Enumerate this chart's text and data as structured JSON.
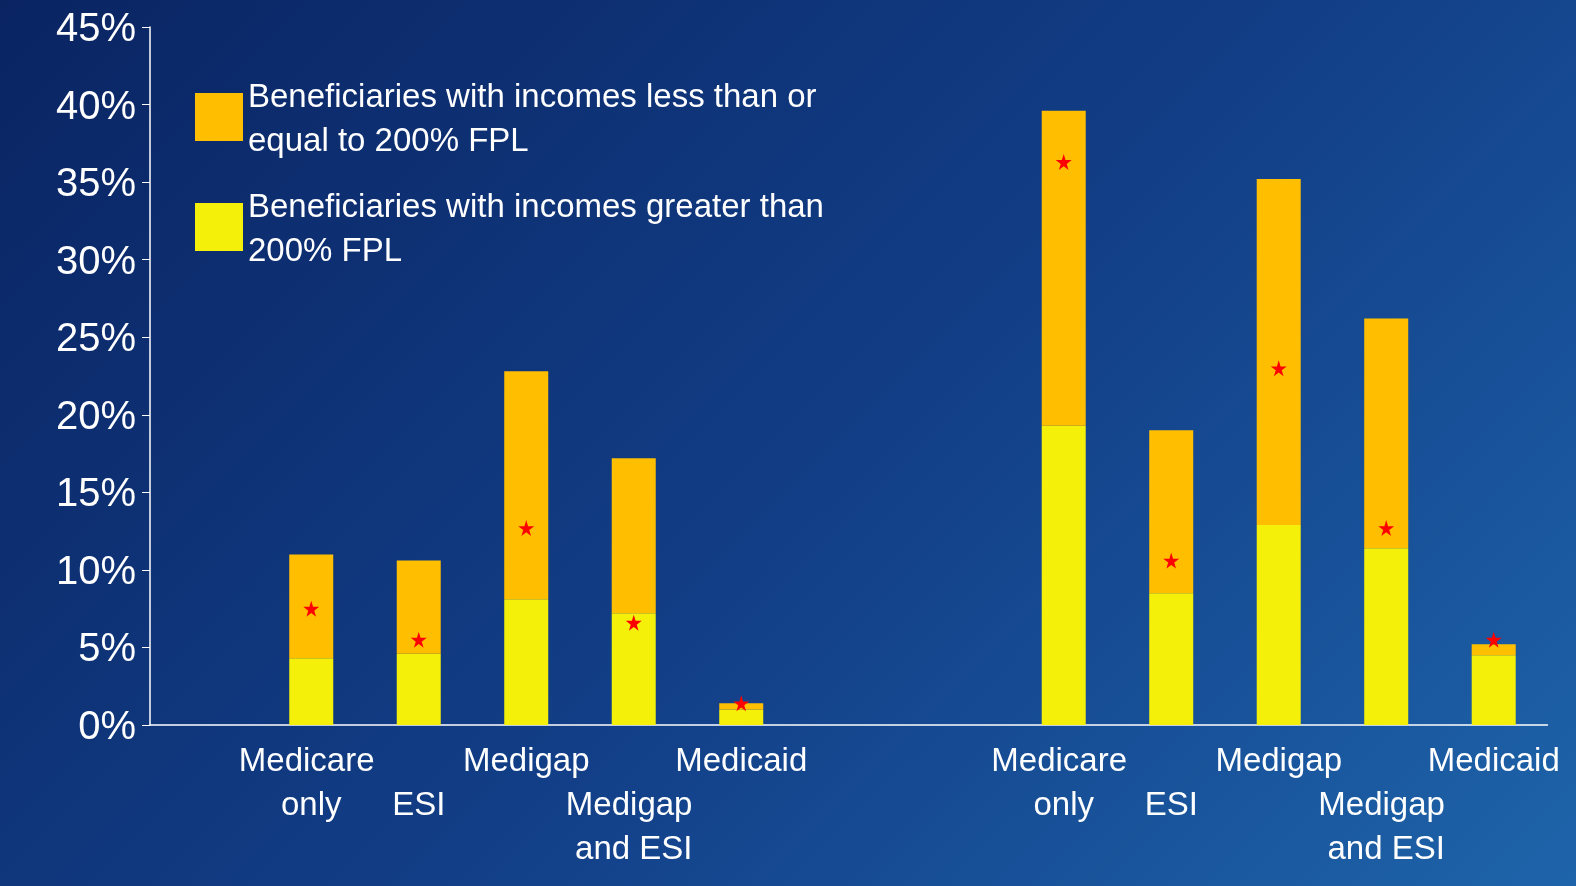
{
  "chart_data": {
    "type": "bar",
    "stacked": true,
    "categories": [
      null,
      "Medicare only",
      "ESI",
      "Medigap",
      "Medigap and ESI",
      "Medicaid",
      null,
      null,
      "Medicare only",
      "ESI",
      "Medigap",
      "Medigap and ESI",
      "Medicaid"
    ],
    "series": [
      {
        "name": "Beneficiaries with incomes greater than 200% FPL",
        "color": "#f5f00a",
        "values": [
          null,
          4.3,
          4.6,
          8.1,
          7.2,
          1.0,
          null,
          null,
          19.3,
          8.5,
          12.9,
          11.4,
          4.5
        ]
      },
      {
        "name": "Beneficiaries with incomes less than or equal to 200% FPL",
        "color": "#ffbf00",
        "values": [
          null,
          6.7,
          6.0,
          14.7,
          10.0,
          0.4,
          null,
          null,
          20.3,
          10.5,
          22.3,
          14.8,
          0.7
        ]
      },
      {
        "type": "scatter",
        "marker": "star",
        "color": "#ff0000",
        "values": [
          null,
          7.5,
          5.5,
          12.7,
          6.6,
          1.4,
          null,
          null,
          36.3,
          10.6,
          23.0,
          12.7,
          5.5
        ]
      }
    ],
    "ylim": [
      0,
      45
    ],
    "yticks": [
      {
        "value": 0,
        "label": "0%"
      },
      {
        "value": 5,
        "label": "5%"
      },
      {
        "value": 10,
        "label": "10%"
      },
      {
        "value": 15,
        "label": "15%"
      },
      {
        "value": 20,
        "label": "20%"
      },
      {
        "value": 25,
        "label": "25%"
      },
      {
        "value": 30,
        "label": "30%"
      },
      {
        "value": 35,
        "label": "35%"
      },
      {
        "value": 40,
        "label": "40%"
      },
      {
        "value": 45,
        "label": "45%"
      }
    ],
    "grid": false,
    "legend": "top left"
  }
}
